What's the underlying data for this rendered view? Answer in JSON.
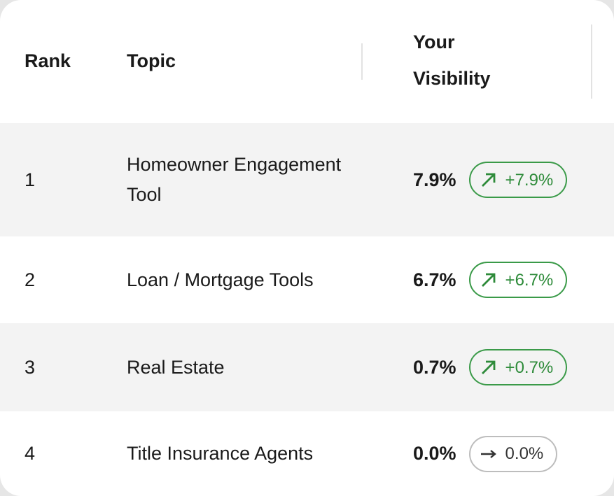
{
  "header": {
    "rank": "Rank",
    "topic": "Topic",
    "visibility_line1": "Your",
    "visibility_line2": "Visibility"
  },
  "colors": {
    "positive": "#2e8b3a",
    "neutral": "#333333",
    "row_alt": "#f3f3f3"
  },
  "rows": [
    {
      "rank": "1",
      "topic": "Homeowner Engagement Tool",
      "visibility": "7.9%",
      "change": "+7.9%",
      "trend_icon": "arrow-up-right-icon"
    },
    {
      "rank": "2",
      "topic": "Loan / Mortgage Tools",
      "visibility": "6.7%",
      "change": "+6.7%",
      "trend_icon": "arrow-up-right-icon"
    },
    {
      "rank": "3",
      "topic": "Real Estate",
      "visibility": "0.7%",
      "change": "+0.7%",
      "trend_icon": "arrow-up-right-icon"
    },
    {
      "rank": "4",
      "topic": "Title Insurance Agents",
      "visibility": "0.0%",
      "change": "0.0%",
      "trend_icon": "arrow-right-icon"
    }
  ]
}
